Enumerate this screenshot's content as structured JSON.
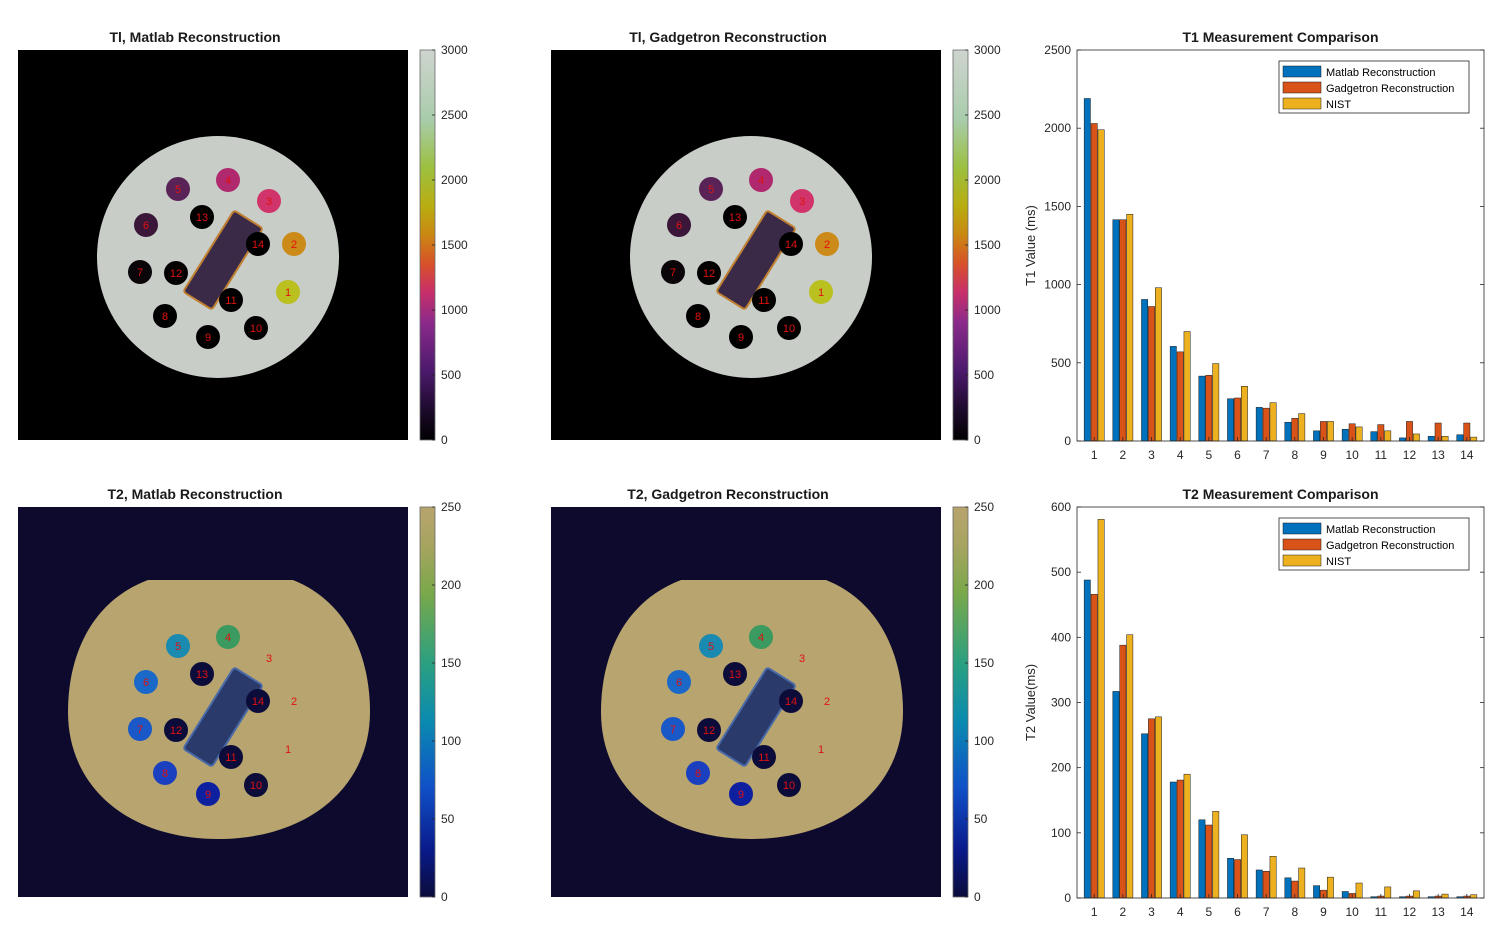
{
  "colors": {
    "matlab": "#0072BD",
    "gadgetron": "#D95319",
    "nist": "#EDB120",
    "t1_background": "#000000",
    "t1_phantom": "#c8cdc8",
    "t2_background": "#0d0a2e",
    "t2_phantom": "#b8a46e"
  },
  "image_panels": [
    {
      "title": "Tl, Matlab Reconstruction",
      "colorbar_ticks": [
        "0",
        "500",
        "1000",
        "1500",
        "2000",
        "2500",
        "3000"
      ],
      "vial_labels": [
        "1",
        "2",
        "3",
        "4",
        "5",
        "6",
        "7",
        "8",
        "9",
        "10",
        "11",
        "12",
        "13",
        "14"
      ],
      "colormap": "t1"
    },
    {
      "title": "Tl, Gadgetron Reconstruction",
      "colorbar_ticks": [
        "0",
        "500",
        "1000",
        "1500",
        "2000",
        "2500",
        "3000"
      ],
      "vial_labels": [
        "1",
        "2",
        "3",
        "4",
        "5",
        "6",
        "7",
        "8",
        "9",
        "10",
        "11",
        "12",
        "13",
        "14"
      ],
      "colormap": "t1"
    },
    {
      "title": "T2, Matlab Reconstruction",
      "colorbar_ticks": [
        "0",
        "50",
        "100",
        "150",
        "200",
        "250"
      ],
      "vial_labels": [
        "1",
        "2",
        "3",
        "4",
        "5",
        "6",
        "7",
        "8",
        "9",
        "10",
        "11",
        "12",
        "13",
        "14"
      ],
      "colormap": "t2"
    },
    {
      "title": "T2, Gadgetron Reconstruction",
      "colorbar_ticks": [
        "0",
        "50",
        "100",
        "150",
        "200",
        "250"
      ],
      "vial_labels": [
        "1",
        "2",
        "3",
        "4",
        "5",
        "6",
        "7",
        "8",
        "9",
        "10",
        "11",
        "12",
        "13",
        "14"
      ],
      "colormap": "t2"
    }
  ],
  "chart_data": [
    {
      "type": "bar",
      "title": "T1 Measurement Comparison",
      "ylabel": "T1 Value (ms)",
      "xlabel": "",
      "ylim": [
        0,
        2500
      ],
      "yticks": [
        "0",
        "500",
        "1000",
        "1500",
        "2000",
        "2500"
      ],
      "categories": [
        "1",
        "2",
        "3",
        "4",
        "5",
        "6",
        "7",
        "8",
        "9",
        "10",
        "11",
        "12",
        "13",
        "14"
      ],
      "legend_position": "top-right",
      "series": [
        {
          "name": "Matlab Reconstruction",
          "values": [
            2190,
            1415,
            905,
            605,
            415,
            270,
            215,
            120,
            65,
            75,
            60,
            20,
            30,
            40
          ]
        },
        {
          "name": "Gadgetron Reconstruction",
          "values": [
            2030,
            1415,
            860,
            570,
            420,
            275,
            210,
            145,
            125,
            110,
            105,
            125,
            115,
            115
          ]
        },
        {
          "name": "NIST",
          "values": [
            1990,
            1450,
            980,
            700,
            495,
            350,
            245,
            175,
            125,
            90,
            65,
            45,
            30,
            25
          ]
        }
      ]
    },
    {
      "type": "bar",
      "title": "T2 Measurement Comparison",
      "ylabel": "T2 Value(ms)",
      "xlabel": "",
      "ylim": [
        0,
        600
      ],
      "yticks": [
        "0",
        "100",
        "200",
        "300",
        "400",
        "500",
        "600"
      ],
      "categories": [
        "1",
        "2",
        "3",
        "4",
        "5",
        "6",
        "7",
        "8",
        "9",
        "10",
        "11",
        "12",
        "13",
        "14"
      ],
      "legend_position": "top-right",
      "series": [
        {
          "name": "Matlab Reconstruction",
          "values": [
            488,
            317,
            252,
            178,
            120,
            61,
            43,
            31,
            19,
            10,
            2,
            2,
            2,
            2
          ]
        },
        {
          "name": "Gadgetron Reconstruction",
          "values": [
            466,
            388,
            275,
            181,
            112,
            59,
            41,
            26,
            12,
            7,
            3,
            3,
            3,
            3
          ]
        },
        {
          "name": "NIST",
          "values": [
            581,
            404,
            278,
            190,
            133,
            97,
            64,
            46,
            32,
            23,
            17,
            11,
            6,
            5
          ]
        }
      ]
    }
  ]
}
